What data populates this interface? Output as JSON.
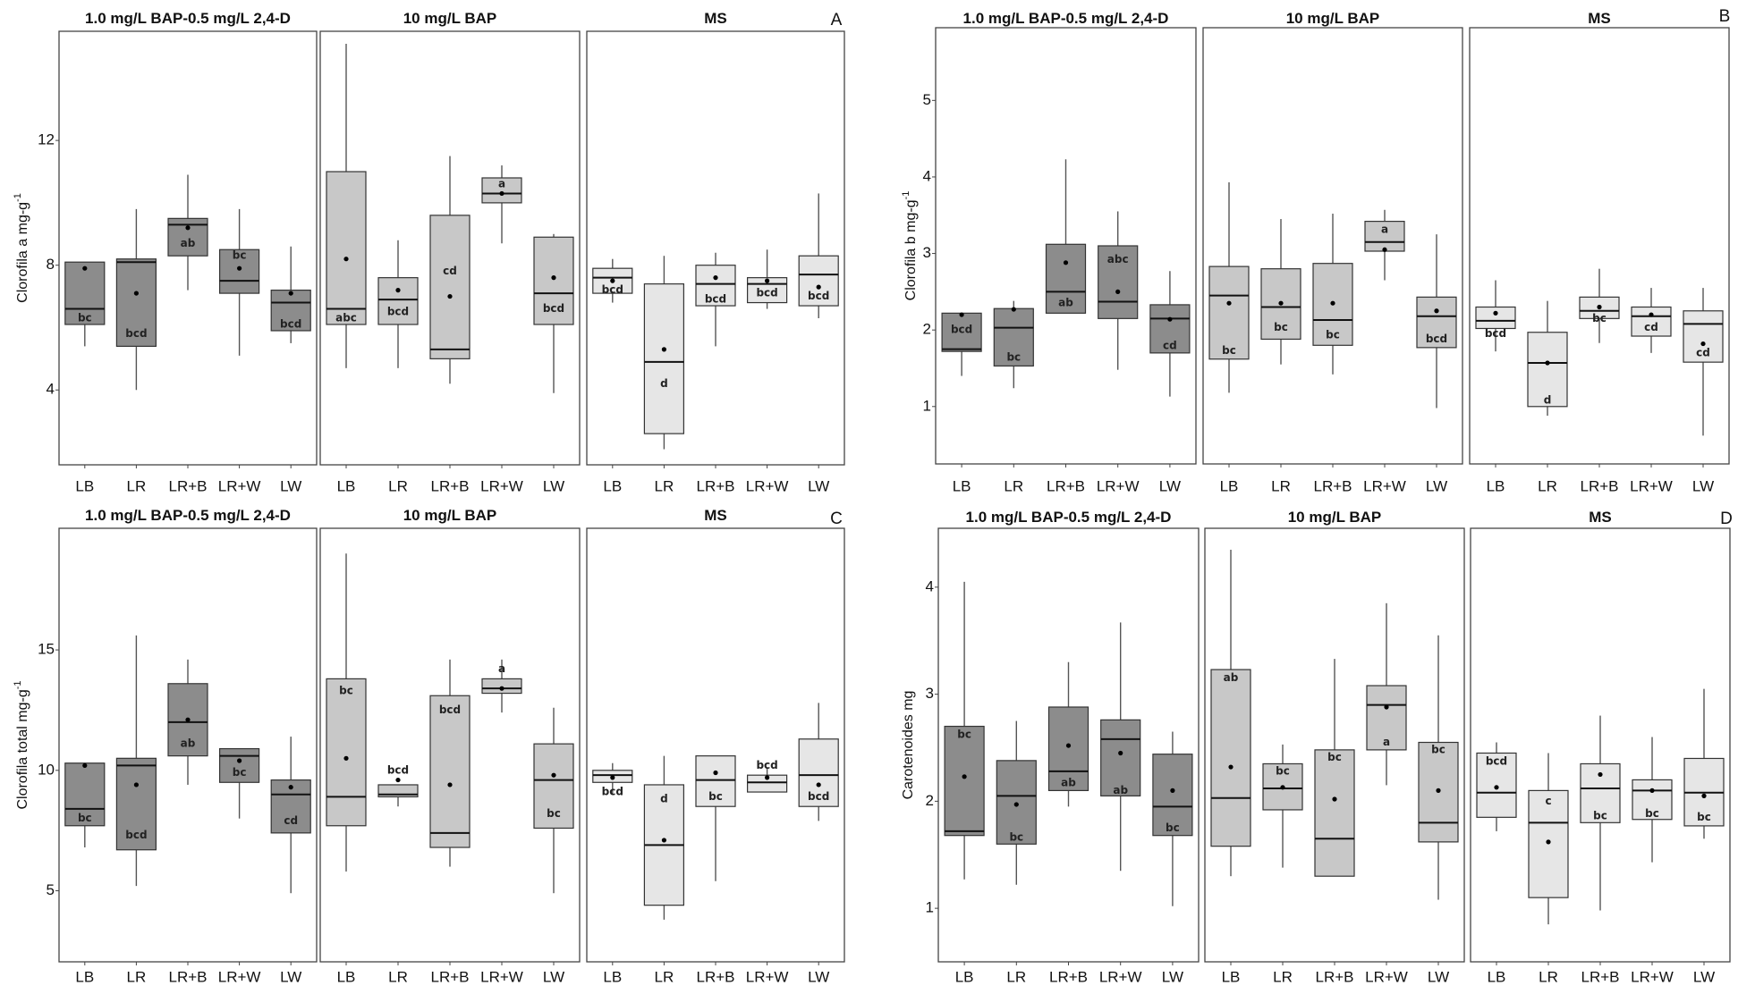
{
  "colors": {
    "dark": "#8c8c8c",
    "mid": "#c8c8c8",
    "light": "#e6e6e6",
    "stroke": "#333333"
  },
  "chart_data": [
    {
      "type": "box",
      "label": "A",
      "ylabel": "Clorofila a mg-g",
      "ylabel_sup": "-1",
      "ylim": [
        1.6,
        15.5
      ],
      "yticks": [
        4,
        8,
        12
      ],
      "categories": [
        "LB",
        "LR",
        "LR+B",
        "LR+W",
        "LW"
      ],
      "panels": [
        {
          "title": "1.0 mg/L BAP-0.5 mg/L 2,4-D",
          "fill": "dark",
          "boxes": [
            {
              "q1": 6.1,
              "median": 6.6,
              "q3": 8.1,
              "low": 5.4,
              "high": 8.1,
              "mean": 7.9,
              "letter": "bc",
              "letter_pos": 6.3
            },
            {
              "q1": 5.4,
              "median": 8.1,
              "q3": 8.2,
              "low": 4.0,
              "high": 9.8,
              "mean": 7.1,
              "letter": "bcd",
              "letter_pos": 5.8
            },
            {
              "q1": 8.3,
              "median": 9.3,
              "q3": 9.5,
              "low": 7.2,
              "high": 10.9,
              "mean": 9.2,
              "letter": "ab",
              "letter_pos": 8.7
            },
            {
              "q1": 7.1,
              "median": 7.5,
              "q3": 8.5,
              "low": 5.1,
              "high": 9.8,
              "mean": 7.9,
              "letter": "bc",
              "letter_pos": 8.3
            },
            {
              "q1": 5.9,
              "median": 6.8,
              "q3": 7.2,
              "low": 5.5,
              "high": 8.6,
              "mean": 7.1,
              "letter": "bcd",
              "letter_pos": 6.1
            }
          ]
        },
        {
          "title": "10 mg/L BAP",
          "fill": "mid",
          "boxes": [
            {
              "q1": 6.1,
              "median": 6.6,
              "q3": 11.0,
              "low": 4.7,
              "high": 15.1,
              "mean": 8.2,
              "letter": "abc",
              "letter_pos": 6.3
            },
            {
              "q1": 6.1,
              "median": 6.9,
              "q3": 7.6,
              "low": 4.7,
              "high": 8.8,
              "mean": 7.2,
              "letter": "bcd",
              "letter_pos": 6.5
            },
            {
              "q1": 5.0,
              "median": 5.3,
              "q3": 9.6,
              "low": 4.2,
              "high": 11.5,
              "mean": 7.0,
              "letter": "cd",
              "letter_pos": 7.8
            },
            {
              "q1": 10.0,
              "median": 10.3,
              "q3": 10.8,
              "low": 8.7,
              "high": 11.2,
              "mean": 10.3,
              "letter": "a",
              "letter_pos": 10.6
            },
            {
              "q1": 6.1,
              "median": 7.1,
              "q3": 8.9,
              "low": 3.9,
              "high": 9.0,
              "mean": 7.6,
              "letter": "bcd",
              "letter_pos": 6.6
            }
          ]
        },
        {
          "title": "MS",
          "fill": "light",
          "boxes": [
            {
              "q1": 7.1,
              "median": 7.6,
              "q3": 7.9,
              "low": 6.8,
              "high": 8.2,
              "mean": 7.5,
              "letter": "bcd",
              "letter_pos": 7.2
            },
            {
              "q1": 2.6,
              "median": 4.9,
              "q3": 7.4,
              "low": 2.1,
              "high": 8.3,
              "mean": 5.3,
              "letter": "d",
              "letter_pos": 4.2
            },
            {
              "q1": 6.7,
              "median": 7.4,
              "q3": 8.0,
              "low": 5.4,
              "high": 8.4,
              "mean": 7.6,
              "letter": "bcd",
              "letter_pos": 6.9
            },
            {
              "q1": 6.8,
              "median": 7.4,
              "q3": 7.6,
              "low": 6.6,
              "high": 8.5,
              "mean": 7.5,
              "letter": "bcd",
              "letter_pos": 7.1
            },
            {
              "q1": 6.7,
              "median": 7.7,
              "q3": 8.3,
              "low": 6.3,
              "high": 10.3,
              "mean": 7.3,
              "letter": "bcd",
              "letter_pos": 7.0
            }
          ]
        }
      ]
    },
    {
      "type": "box",
      "label": "B",
      "ylabel": "Clorofila b mg-g",
      "ylabel_sup": "-1",
      "ylim": [
        0.25,
        5.95
      ],
      "yticks": [
        1,
        2,
        3,
        4,
        5
      ],
      "categories": [
        "LB",
        "LR",
        "LR+B",
        "LR+W",
        "LW"
      ],
      "panels": [
        {
          "title": "1.0 mg/L BAP-0.5 mg/L 2,4-D",
          "fill": "dark",
          "boxes": [
            {
              "q1": 1.72,
              "median": 1.75,
              "q3": 2.22,
              "low": 1.4,
              "high": 2.22,
              "mean": 2.2,
              "letter": "bcd",
              "letter_pos": 2.0
            },
            {
              "q1": 1.53,
              "median": 2.03,
              "q3": 2.28,
              "low": 1.24,
              "high": 2.38,
              "mean": 2.27,
              "letter": "bc",
              "letter_pos": 1.64
            },
            {
              "q1": 2.22,
              "median": 2.5,
              "q3": 3.12,
              "low": 2.22,
              "high": 4.23,
              "mean": 2.88,
              "letter": "ab",
              "letter_pos": 2.35
            },
            {
              "q1": 2.15,
              "median": 2.37,
              "q3": 3.1,
              "low": 1.48,
              "high": 3.55,
              "mean": 2.5,
              "letter": "abc",
              "letter_pos": 2.92
            },
            {
              "q1": 1.7,
              "median": 2.15,
              "q3": 2.33,
              "low": 1.13,
              "high": 2.77,
              "mean": 2.14,
              "letter": "cd",
              "letter_pos": 1.79
            }
          ]
        },
        {
          "title": "10 mg/L BAP",
          "fill": "mid",
          "boxes": [
            {
              "q1": 1.62,
              "median": 2.45,
              "q3": 2.83,
              "low": 1.18,
              "high": 3.93,
              "mean": 2.35,
              "letter": "bc",
              "letter_pos": 1.73
            },
            {
              "q1": 1.88,
              "median": 2.3,
              "q3": 2.8,
              "low": 1.55,
              "high": 3.45,
              "mean": 2.35,
              "letter": "bc",
              "letter_pos": 2.03
            },
            {
              "q1": 1.8,
              "median": 2.13,
              "q3": 2.87,
              "low": 1.42,
              "high": 3.52,
              "mean": 2.35,
              "letter": "bc",
              "letter_pos": 1.93
            },
            {
              "q1": 3.03,
              "median": 3.15,
              "q3": 3.42,
              "low": 2.65,
              "high": 3.57,
              "mean": 3.05,
              "letter": "a",
              "letter_pos": 3.31
            },
            {
              "q1": 1.77,
              "median": 2.18,
              "q3": 2.43,
              "low": 0.98,
              "high": 3.25,
              "mean": 2.25,
              "letter": "bcd",
              "letter_pos": 1.88
            }
          ]
        },
        {
          "title": "MS",
          "fill": "light",
          "boxes": [
            {
              "q1": 2.02,
              "median": 2.12,
              "q3": 2.3,
              "low": 1.72,
              "high": 2.65,
              "mean": 2.22,
              "letter": "bcd",
              "letter_pos": 1.95
            },
            {
              "q1": 1.0,
              "median": 1.57,
              "q3": 1.97,
              "low": 0.88,
              "high": 2.38,
              "mean": 1.57,
              "letter": "d",
              "letter_pos": 1.08
            },
            {
              "q1": 2.15,
              "median": 2.25,
              "q3": 2.43,
              "low": 1.83,
              "high": 2.8,
              "mean": 2.3,
              "letter": "bc",
              "letter_pos": 2.15
            },
            {
              "q1": 1.92,
              "median": 2.18,
              "q3": 2.3,
              "low": 1.7,
              "high": 2.55,
              "mean": 2.2,
              "letter": "cd",
              "letter_pos": 2.03
            },
            {
              "q1": 1.58,
              "median": 2.08,
              "q3": 2.25,
              "low": 0.62,
              "high": 2.55,
              "mean": 1.82,
              "letter": "cd",
              "letter_pos": 1.7
            }
          ]
        }
      ]
    },
    {
      "type": "box",
      "label": "C",
      "ylabel": "Clorofila total mg-g",
      "ylabel_sup": "-1",
      "ylim": [
        2.05,
        20.05
      ],
      "yticks": [
        5,
        10,
        15
      ],
      "categories": [
        "LB",
        "LR",
        "LR+B",
        "LR+W",
        "LW"
      ],
      "panels": [
        {
          "title": "1.0 mg/L BAP-0.5 mg/L 2,4-D",
          "fill": "dark",
          "boxes": [
            {
              "q1": 7.7,
              "median": 8.4,
              "q3": 10.3,
              "low": 6.8,
              "high": 10.3,
              "mean": 10.2,
              "letter": "bc",
              "letter_pos": 8.0
            },
            {
              "q1": 6.7,
              "median": 10.2,
              "q3": 10.5,
              "low": 5.2,
              "high": 15.6,
              "mean": 9.4,
              "letter": "bcd",
              "letter_pos": 7.3
            },
            {
              "q1": 10.6,
              "median": 12.0,
              "q3": 13.6,
              "low": 9.4,
              "high": 14.6,
              "mean": 12.1,
              "letter": "ab",
              "letter_pos": 11.1
            },
            {
              "q1": 9.5,
              "median": 10.6,
              "q3": 10.9,
              "low": 8.0,
              "high": 10.9,
              "mean": 10.4,
              "letter": "bc",
              "letter_pos": 9.9
            },
            {
              "q1": 7.4,
              "median": 9.0,
              "q3": 9.6,
              "low": 4.9,
              "high": 11.4,
              "mean": 9.3,
              "letter": "cd",
              "letter_pos": 7.9
            }
          ]
        },
        {
          "title": "10 mg/L BAP",
          "fill": "mid",
          "boxes": [
            {
              "q1": 7.7,
              "median": 8.9,
              "q3": 13.8,
              "low": 5.8,
              "high": 19.0,
              "mean": 10.5,
              "letter": "bc",
              "letter_pos": 13.3
            },
            {
              "q1": 8.9,
              "median": 9.0,
              "q3": 9.4,
              "low": 8.5,
              "high": 9.4,
              "mean": 9.6,
              "letter": "bcd",
              "letter_pos": 10.0
            },
            {
              "q1": 6.8,
              "median": 7.4,
              "q3": 13.1,
              "low": 6.0,
              "high": 14.6,
              "mean": 9.4,
              "letter": "bcd",
              "letter_pos": 12.5
            },
            {
              "q1": 13.2,
              "median": 13.4,
              "q3": 13.8,
              "low": 12.4,
              "high": 14.6,
              "mean": 13.4,
              "letter": "a",
              "letter_pos": 14.2
            },
            {
              "q1": 7.6,
              "median": 9.6,
              "q3": 11.1,
              "low": 4.9,
              "high": 12.6,
              "mean": 9.8,
              "letter": "bc",
              "letter_pos": 8.2
            }
          ]
        },
        {
          "title": "MS",
          "fill": "light",
          "boxes": [
            {
              "q1": 9.5,
              "median": 9.8,
              "q3": 10.0,
              "low": 9.0,
              "high": 10.3,
              "mean": 9.7,
              "letter": "bcd",
              "letter_pos": 9.1
            },
            {
              "q1": 4.4,
              "median": 6.9,
              "q3": 9.4,
              "low": 3.8,
              "high": 10.6,
              "mean": 7.1,
              "letter": "d",
              "letter_pos": 8.8
            },
            {
              "q1": 8.5,
              "median": 9.6,
              "q3": 10.6,
              "low": 5.4,
              "high": 10.6,
              "mean": 9.9,
              "letter": "bc",
              "letter_pos": 8.9
            },
            {
              "q1": 9.1,
              "median": 9.5,
              "q3": 9.8,
              "low": 9.1,
              "high": 10.1,
              "mean": 9.7,
              "letter": "bcd",
              "letter_pos": 10.2
            },
            {
              "q1": 8.5,
              "median": 9.8,
              "q3": 11.3,
              "low": 7.9,
              "high": 12.8,
              "mean": 9.4,
              "letter": "bcd",
              "letter_pos": 8.9
            }
          ]
        }
      ]
    },
    {
      "type": "box",
      "label": "D",
      "ylabel": "Carotenoides mg",
      "ylabel_sup": "",
      "ylim": [
        0.5,
        4.55
      ],
      "yticks": [
        1,
        2,
        3,
        4
      ],
      "categories": [
        "LB",
        "LR",
        "LR+B",
        "LR+W",
        "LW"
      ],
      "panels": [
        {
          "title": "1.0 mg/L BAP-0.5 mg/L 2,4-D",
          "fill": "dark",
          "boxes": [
            {
              "q1": 1.68,
              "median": 1.72,
              "q3": 2.7,
              "low": 1.27,
              "high": 4.05,
              "mean": 2.23,
              "letter": "bc",
              "letter_pos": 2.62
            },
            {
              "q1": 1.6,
              "median": 2.05,
              "q3": 2.38,
              "low": 1.22,
              "high": 2.75,
              "mean": 1.97,
              "letter": "bc",
              "letter_pos": 1.66
            },
            {
              "q1": 2.1,
              "median": 2.28,
              "q3": 2.88,
              "low": 1.95,
              "high": 3.3,
              "mean": 2.52,
              "letter": "ab",
              "letter_pos": 2.17
            },
            {
              "q1": 2.05,
              "median": 2.58,
              "q3": 2.76,
              "low": 1.35,
              "high": 3.67,
              "mean": 2.45,
              "letter": "ab",
              "letter_pos": 2.1
            },
            {
              "q1": 1.68,
              "median": 1.95,
              "q3": 2.44,
              "low": 1.02,
              "high": 2.65,
              "mean": 2.1,
              "letter": "bc",
              "letter_pos": 1.75
            }
          ]
        },
        {
          "title": "10 mg/L BAP",
          "fill": "mid",
          "boxes": [
            {
              "q1": 1.58,
              "median": 2.03,
              "q3": 3.23,
              "low": 1.3,
              "high": 4.35,
              "mean": 2.32,
              "letter": "ab",
              "letter_pos": 3.15
            },
            {
              "q1": 1.92,
              "median": 2.12,
              "q3": 2.35,
              "low": 1.38,
              "high": 2.53,
              "mean": 2.13,
              "letter": "bc",
              "letter_pos": 2.28
            },
            {
              "q1": 1.3,
              "median": 1.65,
              "q3": 2.48,
              "low": 1.3,
              "high": 3.33,
              "mean": 2.02,
              "letter": "bc",
              "letter_pos": 2.41
            },
            {
              "q1": 2.48,
              "median": 2.9,
              "q3": 3.08,
              "low": 2.15,
              "high": 3.85,
              "mean": 2.88,
              "letter": "a",
              "letter_pos": 2.55
            },
            {
              "q1": 1.62,
              "median": 1.8,
              "q3": 2.55,
              "low": 1.08,
              "high": 3.55,
              "mean": 2.1,
              "letter": "bc",
              "letter_pos": 2.48
            }
          ]
        },
        {
          "title": "MS",
          "fill": "light",
          "boxes": [
            {
              "q1": 1.85,
              "median": 2.08,
              "q3": 2.45,
              "low": 1.72,
              "high": 2.55,
              "mean": 2.13,
              "letter": "bcd",
              "letter_pos": 2.37
            },
            {
              "q1": 1.1,
              "median": 1.8,
              "q3": 2.1,
              "low": 0.85,
              "high": 2.45,
              "mean": 1.62,
              "letter": "c",
              "letter_pos": 2.0
            },
            {
              "q1": 1.8,
              "median": 2.12,
              "q3": 2.35,
              "low": 0.98,
              "high": 2.8,
              "mean": 2.25,
              "letter": "bc",
              "letter_pos": 1.86
            },
            {
              "q1": 1.83,
              "median": 2.1,
              "q3": 2.2,
              "low": 1.43,
              "high": 2.6,
              "mean": 2.1,
              "letter": "bc",
              "letter_pos": 1.88
            },
            {
              "q1": 1.77,
              "median": 2.08,
              "q3": 2.4,
              "low": 1.65,
              "high": 3.05,
              "mean": 2.05,
              "letter": "bc",
              "letter_pos": 1.85
            }
          ]
        }
      ]
    }
  ]
}
